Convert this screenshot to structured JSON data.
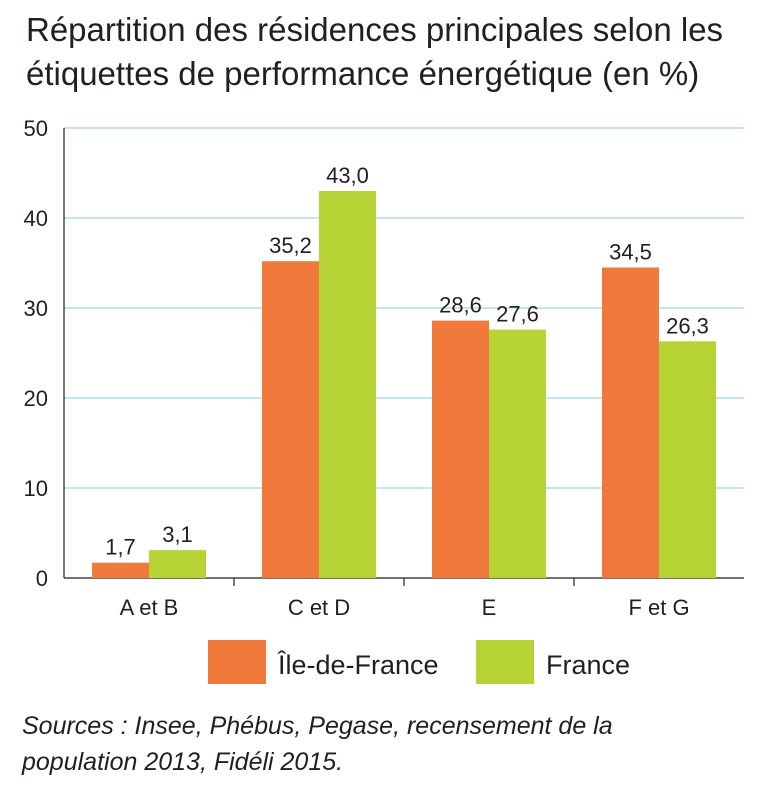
{
  "title": {
    "line1": "Répartition des résidences principales selon les",
    "line2": "étiquettes de performance énergétique (en %)"
  },
  "source": {
    "line1": "Sources : Insee, Phébus, Pegase, recensement de la",
    "line2": "population 2013, Fidéli 2015."
  },
  "colors": {
    "idf": "#f07a3c",
    "france": "#b5d334",
    "grid": "#9fd3e8",
    "axis": "#231f20"
  },
  "chart_data": {
    "type": "bar",
    "title": "Répartition des résidences principales selon les étiquettes de performance énergétique (en %)",
    "categories": [
      "A et B",
      "C et D",
      "E",
      "F et G"
    ],
    "series": [
      {
        "name": "Île-de-France",
        "values": [
          1.7,
          35.2,
          28.6,
          34.5
        ],
        "labels": [
          "1,7",
          "35,2",
          "28,6",
          "34,5"
        ],
        "color": "#f07a3c"
      },
      {
        "name": "France",
        "values": [
          3.1,
          43.0,
          27.6,
          26.3
        ],
        "labels": [
          "3,1",
          "43,0",
          "27,6",
          "26,3"
        ],
        "color": "#b5d334"
      }
    ],
    "ylim": [
      0,
      50
    ],
    "yticks": [
      0,
      10,
      20,
      30,
      40,
      50
    ],
    "ytick_labels": [
      "0",
      "10",
      "20",
      "30",
      "40",
      "50"
    ],
    "grid": true,
    "legend": "bottom"
  }
}
